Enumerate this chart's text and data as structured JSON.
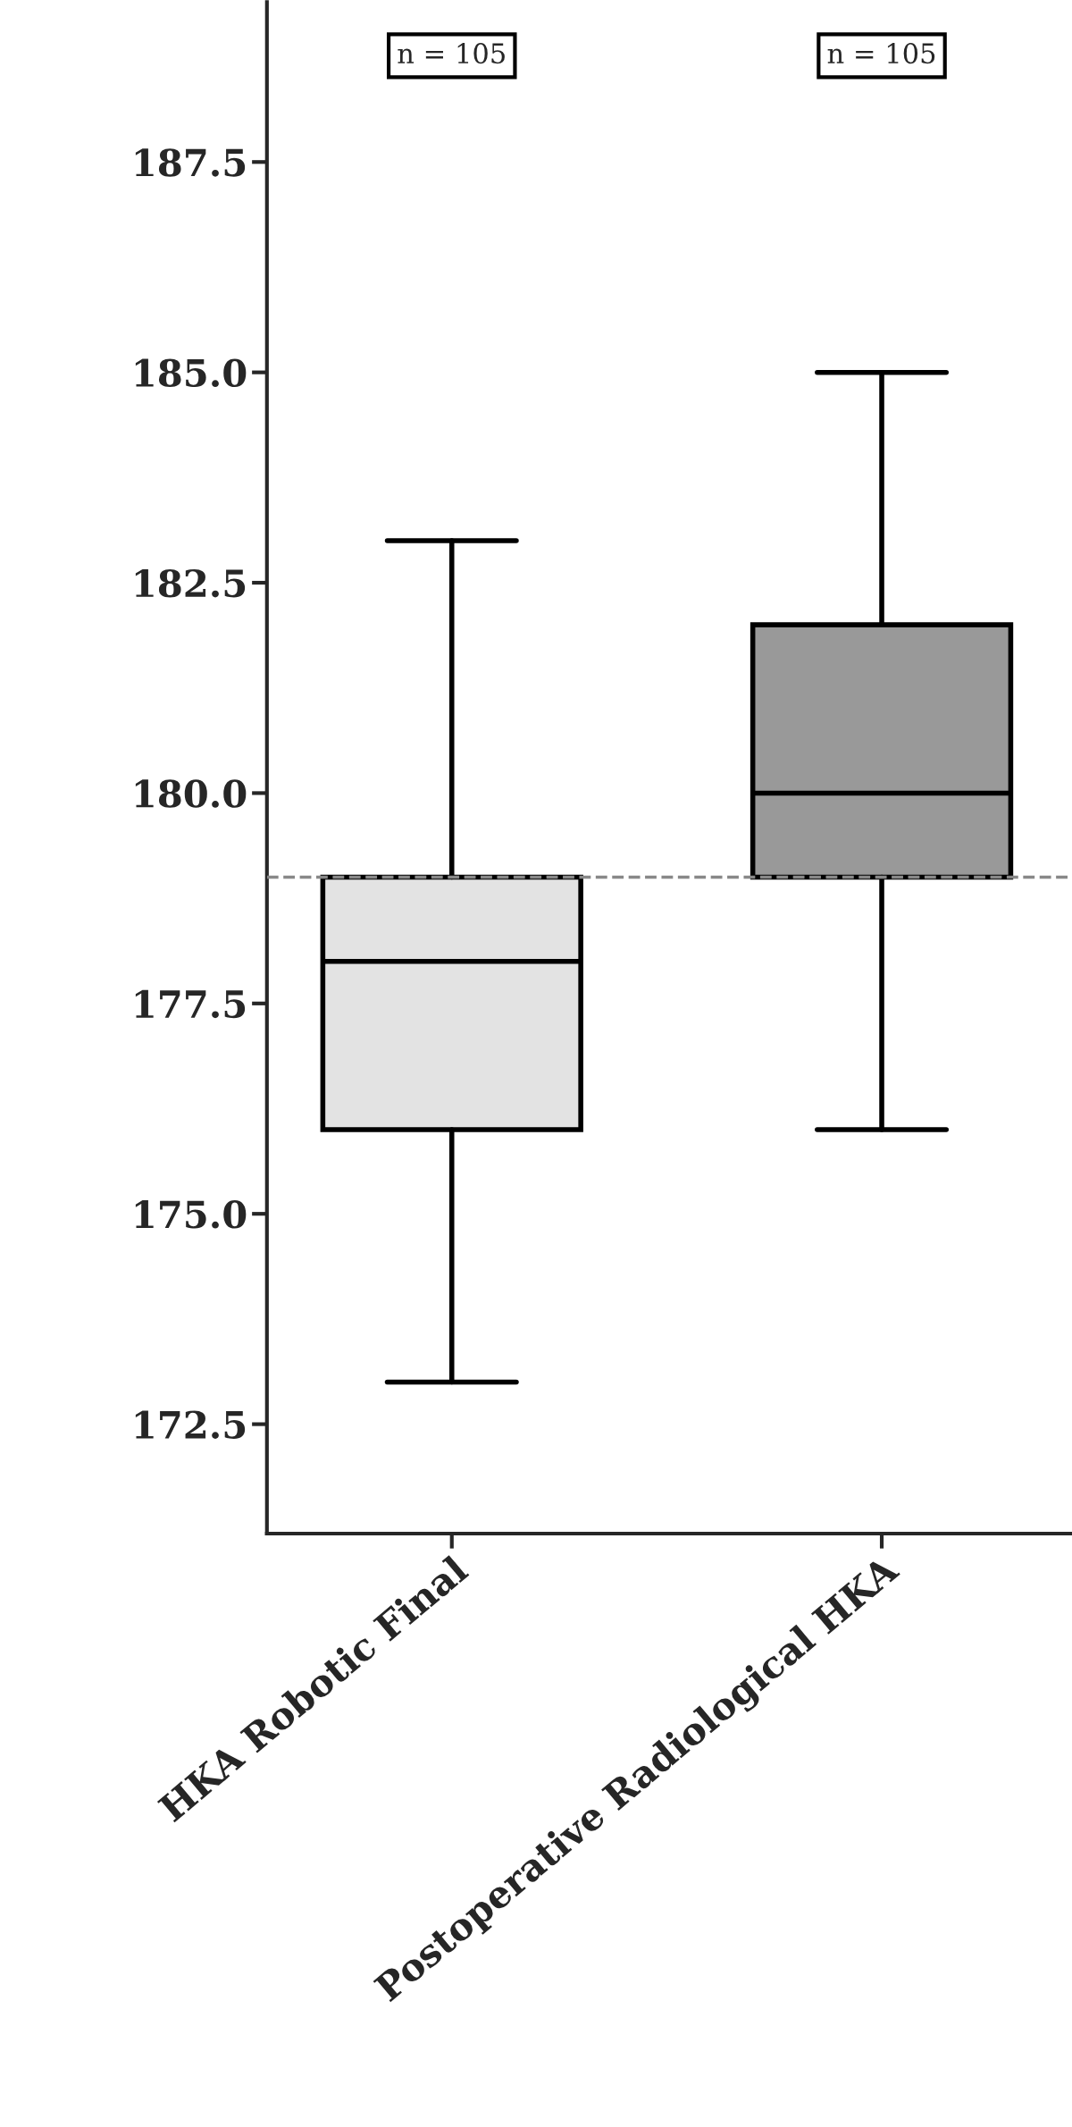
{
  "chart_data": {
    "type": "box",
    "categories": [
      "HKA Robotic Final",
      "Postoperative Radiological HKA"
    ],
    "boxes": [
      {
        "low": 173,
        "q1": 176,
        "median": 178,
        "q3": 179,
        "high": 183
      },
      {
        "low": 176,
        "q1": 179,
        "median": 180,
        "q3": 182,
        "high": 185
      }
    ],
    "colors": [
      "#e3e3e3",
      "#999999"
    ],
    "ylim": [
      171.2,
      189.4
    ],
    "yticks": [
      172.5,
      {
        "value": 175,
        "label": "175.0"
      },
      177.5,
      {
        "value": 180,
        "label": "180.0"
      },
      182.5,
      {
        "value": 185,
        "label": "185.0"
      },
      187.5
    ],
    "ref_lines": [
      {
        "axis": "y",
        "value": 179,
        "color": "#888888",
        "line_style": "dashed"
      }
    ],
    "annotations": [
      "n = 105",
      "n = 105"
    ],
    "grid": false
  }
}
